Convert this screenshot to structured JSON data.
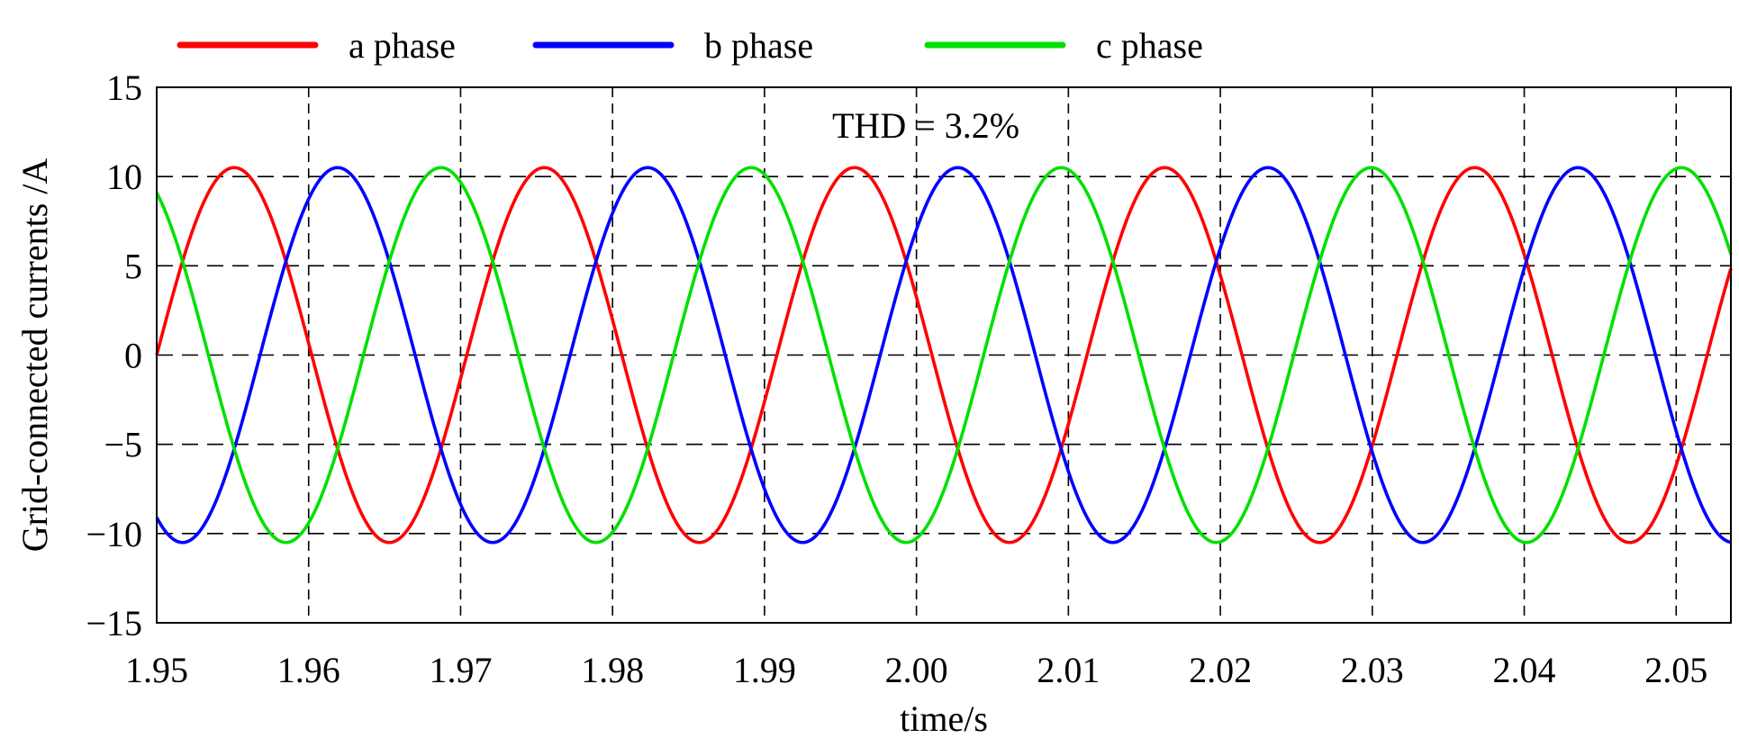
{
  "chart_data": {
    "type": "line",
    "title": "",
    "annotation": "THD = 3.2%",
    "xlabel": "time/s",
    "ylabel": "Grid-connected currents /A",
    "xlim": [
      1.95,
      2.0536
    ],
    "ylim": [
      -15,
      15
    ],
    "x_ticks": [
      1.95,
      1.96,
      1.97,
      1.98,
      1.99,
      2.0,
      2.01,
      2.02,
      2.03,
      2.04,
      2.05
    ],
    "x_tick_labels": [
      "1.95",
      "1.96",
      "1.97",
      "1.98",
      "1.99",
      "2.00",
      "2.01",
      "2.02",
      "2.03",
      "2.04",
      "2.05"
    ],
    "y_ticks": [
      15,
      10,
      5,
      0,
      -5,
      -10,
      -15
    ],
    "y_tick_labels": [
      "15",
      "10",
      "5",
      "0",
      "−5",
      "−10",
      "−15"
    ],
    "grid": "dashed",
    "legend_position": "top",
    "series": [
      {
        "name": "a phase",
        "color": "#ff0000",
        "amplitude": 10.5,
        "frequency_hz": 49,
        "phase_deg": 0
      },
      {
        "name": "b phase",
        "color": "#0000ff",
        "amplitude": 10.5,
        "frequency_hz": 49,
        "phase_deg": -120
      },
      {
        "name": "c phase",
        "color": "#00e000",
        "amplitude": 10.5,
        "frequency_hz": 49,
        "phase_deg": 120
      }
    ]
  }
}
